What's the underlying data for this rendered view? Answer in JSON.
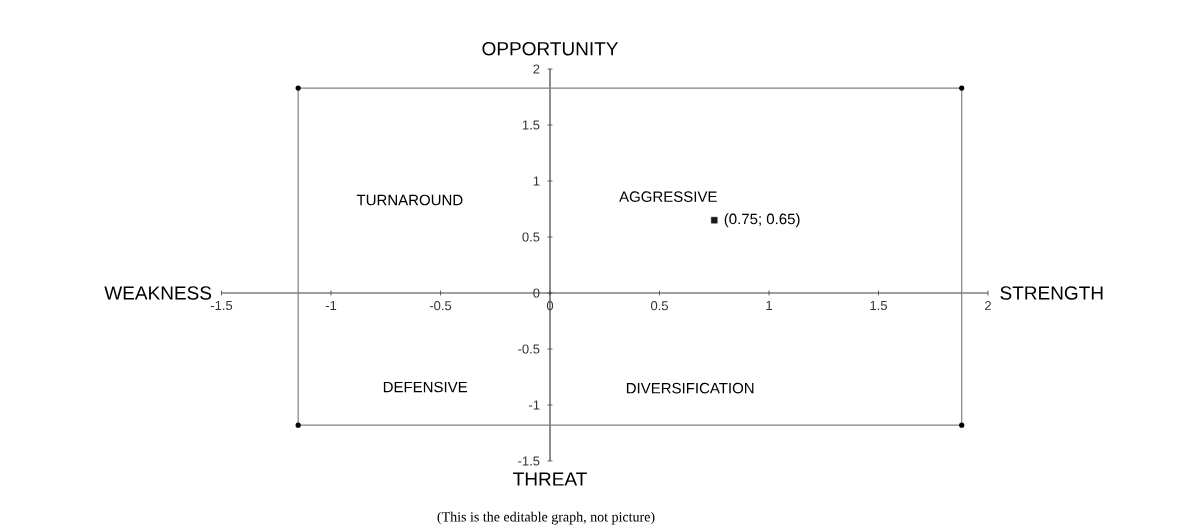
{
  "chart_data": {
    "type": "scatter",
    "xlabel": "STRENGTH",
    "ylabel": "OPPORTUNITY",
    "xlim": [
      -1.5,
      2
    ],
    "ylim": [
      -1.5,
      2
    ],
    "xticks": [
      -1.5,
      -1,
      -0.5,
      0,
      0.5,
      1,
      1.5,
      2
    ],
    "yticks": [
      -1.5,
      -1,
      -0.5,
      0,
      0.5,
      1,
      1.5,
      2
    ],
    "series": [
      {
        "type": "line",
        "color": "#808080",
        "marker": "circle",
        "x": [
          -1.15,
          1.88
        ],
        "values": [
          1.83,
          1.83
        ]
      },
      {
        "type": "line",
        "color": "#808080",
        "marker": "circle",
        "x": [
          -1.15,
          1.88
        ],
        "values": [
          -1.18,
          -1.18
        ]
      },
      {
        "type": "line",
        "color": "#808080",
        "x": [
          -1.15,
          -1.15
        ],
        "values": [
          1.83,
          -1.18
        ]
      },
      {
        "type": "line",
        "color": "#808080",
        "x": [
          1.88,
          1.88
        ],
        "values": [
          1.83,
          -1.18
        ]
      },
      {
        "color": "#1a1a1a",
        "marker": "square",
        "x": [
          0.75
        ],
        "values": [
          0.65
        ],
        "value_labels": [
          "(0.75; 0.65)"
        ]
      }
    ],
    "annotations": [
      "WEAKNESS",
      "THREAT",
      "TURNAROUND",
      "AGGRESSIVE",
      "DEFENSIVE",
      "DIVERSIFICATION",
      "(This is the editable graph, not picture)"
    ]
  }
}
